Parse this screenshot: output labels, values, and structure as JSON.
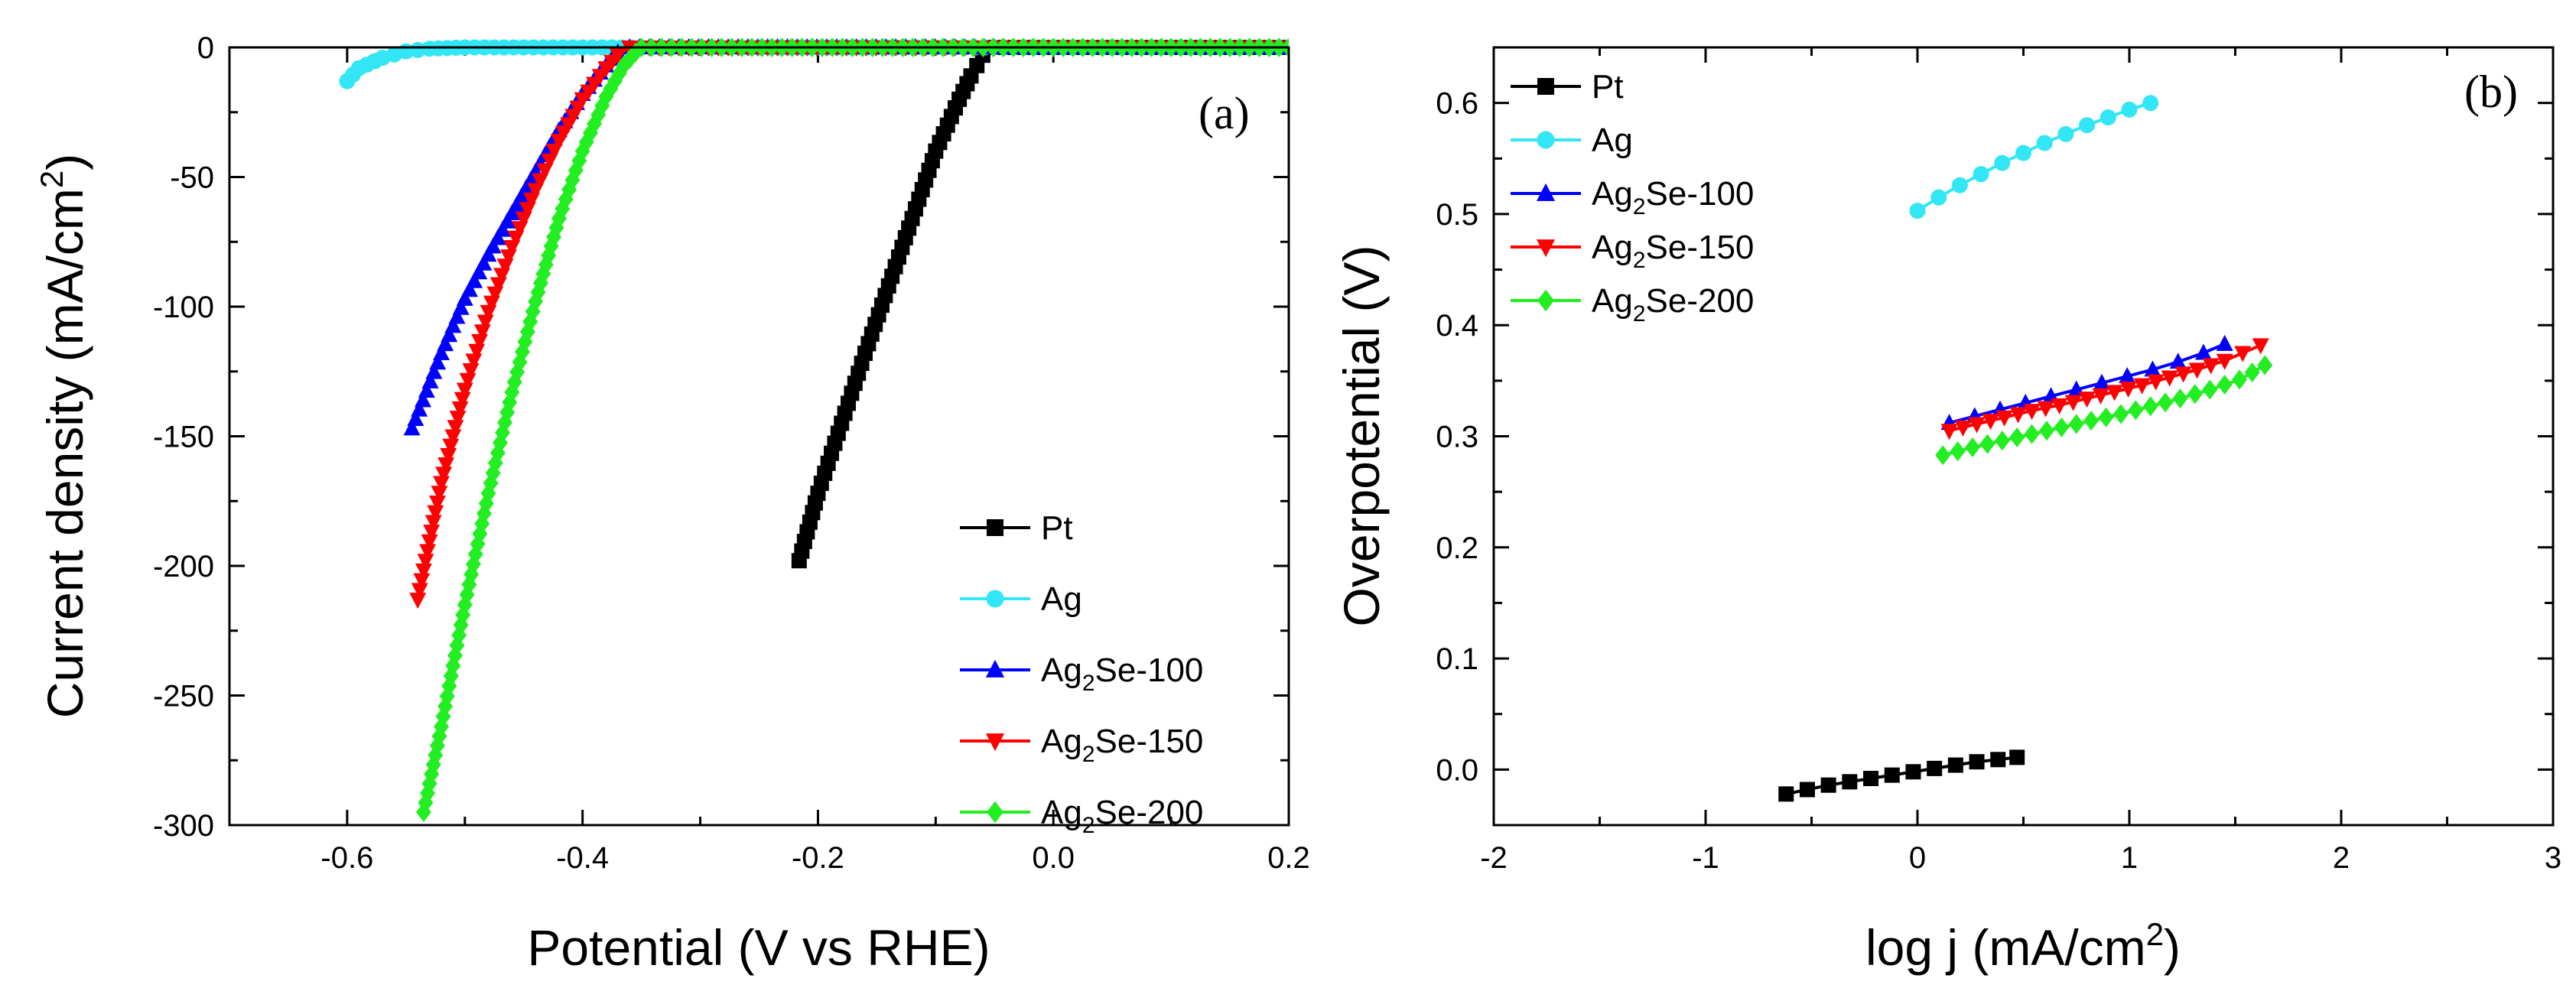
{
  "figure": {
    "panels": [
      "(a)",
      "(b)"
    ]
  },
  "chart_data": [
    {
      "type": "line",
      "panel_label": "(a)",
      "title": "",
      "xlabel": "Potential (V vs RHE)",
      "ylabel": "Current density (mA/cm2)",
      "xlim": [
        -0.7,
        0.2
      ],
      "ylim": [
        -300,
        0
      ],
      "xticks": [
        -0.6,
        -0.4,
        -0.2,
        0.0,
        0.2
      ],
      "xtick_labels": [
        "-0.6",
        "-0.4",
        "-0.2",
        "0.0",
        "0.2"
      ],
      "yticks": [
        0,
        -50,
        -100,
        -150,
        -200,
        -250,
        -300
      ],
      "ytick_labels": [
        "0",
        "-50",
        "-100",
        "-150",
        "-200",
        "-250",
        "-300"
      ],
      "legend_position": "bottom-right",
      "series": [
        {
          "name": "Pt",
          "label_parts": [
            "Pt"
          ],
          "color": "#000000",
          "marker": "square",
          "x": [
            -0.216,
            -0.2,
            -0.18,
            -0.16,
            -0.14,
            -0.12,
            -0.1,
            -0.08,
            -0.07,
            -0.06,
            -0.05,
            -0.04,
            0.0,
            0.2
          ],
          "y": [
            -198,
            -172,
            -145,
            -118,
            -92,
            -66,
            -40,
            -20,
            -11,
            -3,
            0,
            0,
            0,
            0
          ]
        },
        {
          "name": "Ag",
          "label_parts": [
            "Ag"
          ],
          "color": "#33E6F5",
          "marker": "circle",
          "x": [
            -0.6,
            -0.59,
            -0.57,
            -0.55,
            -0.53,
            -0.5,
            -0.4,
            -0.2,
            0.0,
            0.2
          ],
          "y": [
            -13,
            -8,
            -4,
            -1.5,
            -0.5,
            0,
            0,
            0,
            0,
            0
          ]
        },
        {
          "name": "Ag2Se-100",
          "label_parts": [
            "Ag",
            "2",
            "Se-100"
          ],
          "color": "#0000FF",
          "marker": "triangle-up",
          "x": [
            -0.545,
            -0.52,
            -0.5,
            -0.48,
            -0.46,
            -0.44,
            -0.42,
            -0.4,
            -0.38,
            -0.37,
            -0.36,
            0.0,
            0.2
          ],
          "y": [
            -147,
            -118,
            -97,
            -80,
            -64,
            -48,
            -32,
            -18,
            -7,
            -2,
            0,
            0,
            0
          ]
        },
        {
          "name": "Ag2Se-150",
          "label_parts": [
            "Ag",
            "2",
            "Se-150"
          ],
          "color": "#FF0000",
          "marker": "triangle-down",
          "x": [
            -0.54,
            -0.52,
            -0.5,
            -0.48,
            -0.46,
            -0.44,
            -0.42,
            -0.4,
            -0.38,
            -0.37,
            -0.36,
            0.0,
            0.2
          ],
          "y": [
            -213,
            -168,
            -132,
            -102,
            -77,
            -55,
            -36,
            -20,
            -8,
            -3,
            0,
            0,
            0
          ]
        },
        {
          "name": "Ag2Se-200",
          "label_parts": [
            "Ag",
            "2",
            "Se-200"
          ],
          "color": "#22EE22",
          "marker": "diamond",
          "x": [
            -0.535,
            -0.52,
            -0.5,
            -0.48,
            -0.46,
            -0.44,
            -0.42,
            -0.4,
            -0.38,
            -0.365,
            -0.355,
            -0.35,
            0.0,
            0.2
          ],
          "y": [
            -295,
            -262,
            -215,
            -172,
            -133,
            -98,
            -66,
            -40,
            -19,
            -7,
            -2,
            0,
            0,
            0
          ]
        }
      ]
    },
    {
      "type": "line",
      "panel_label": "(b)",
      "title": "",
      "xlabel": "log j (mA/cm2)",
      "ylabel": "Overpotential (V)",
      "xlim": [
        -2,
        3
      ],
      "ylim": [
        -0.05,
        0.65
      ],
      "xticks": [
        -2,
        -1,
        0,
        1,
        2,
        3
      ],
      "xtick_labels": [
        "-2",
        "-1",
        "0",
        "1",
        "2",
        "3"
      ],
      "yticks": [
        0.0,
        0.1,
        0.2,
        0.3,
        0.4,
        0.5,
        0.6
      ],
      "ytick_labels": [
        "0.0",
        "0.1",
        "0.2",
        "0.3",
        "0.4",
        "0.5",
        "0.6"
      ],
      "legend_position": "top-left",
      "series": [
        {
          "name": "Pt",
          "label_parts": [
            "Pt"
          ],
          "color": "#000000",
          "marker": "square",
          "x": [
            -0.62,
            -0.52,
            -0.42,
            -0.32,
            -0.22,
            -0.12,
            -0.02,
            0.08,
            0.18,
            0.28,
            0.38,
            0.47
          ],
          "y": [
            -0.022,
            -0.018,
            -0.014,
            -0.011,
            -0.008,
            -0.005,
            -0.002,
            0.001,
            0.004,
            0.007,
            0.009,
            0.011
          ]
        },
        {
          "name": "Ag",
          "label_parts": [
            "Ag"
          ],
          "color": "#33E6F5",
          "marker": "circle",
          "x": [
            0.0,
            0.1,
            0.2,
            0.3,
            0.4,
            0.5,
            0.6,
            0.7,
            0.8,
            0.9,
            1.0,
            1.1
          ],
          "y": [
            0.503,
            0.515,
            0.526,
            0.536,
            0.546,
            0.555,
            0.564,
            0.572,
            0.58,
            0.587,
            0.594,
            0.6
          ]
        },
        {
          "name": "Ag2Se-100",
          "label_parts": [
            "Ag",
            "2",
            "Se-100"
          ],
          "color": "#0000FF",
          "marker": "triangle-up",
          "x": [
            0.15,
            0.27,
            0.39,
            0.51,
            0.63,
            0.75,
            0.87,
            0.99,
            1.11,
            1.23,
            1.35,
            1.45
          ],
          "y": [
            0.312,
            0.318,
            0.324,
            0.33,
            0.336,
            0.342,
            0.348,
            0.354,
            0.36,
            0.367,
            0.375,
            0.383
          ]
        },
        {
          "name": "Ag2Se-150",
          "label_parts": [
            "Ag",
            "2",
            "Se-150"
          ],
          "color": "#FF0000",
          "marker": "triangle-down",
          "x": [
            0.15,
            0.28,
            0.41,
            0.54,
            0.67,
            0.8,
            0.93,
            1.06,
            1.19,
            1.32,
            1.45,
            1.62
          ],
          "y": [
            0.305,
            0.311,
            0.317,
            0.323,
            0.328,
            0.334,
            0.34,
            0.346,
            0.353,
            0.36,
            0.368,
            0.382
          ]
        },
        {
          "name": "Ag2Se-200",
          "label_parts": [
            "Ag",
            "2",
            "Se-200"
          ],
          "color": "#22EE22",
          "marker": "diamond",
          "x": [
            0.12,
            0.26,
            0.4,
            0.54,
            0.68,
            0.82,
            0.96,
            1.1,
            1.24,
            1.38,
            1.52,
            1.64
          ],
          "y": [
            0.283,
            0.29,
            0.296,
            0.302,
            0.308,
            0.314,
            0.32,
            0.327,
            0.334,
            0.342,
            0.351,
            0.364
          ]
        }
      ]
    }
  ]
}
